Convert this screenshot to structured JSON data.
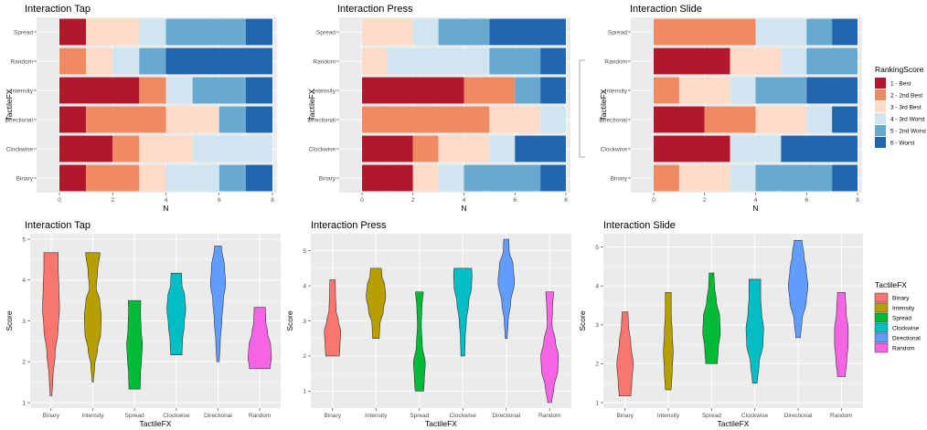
{
  "chart_data": [
    {
      "type": "bar",
      "orientation": "horizontal",
      "stacked": true,
      "title": "Interaction Tap",
      "xlabel": "N",
      "ylabel": "TactileFX",
      "xlim": [
        0,
        8
      ],
      "xticks": [
        "0",
        "2",
        "4",
        "6",
        "8"
      ],
      "categories": [
        "Binary",
        "Clockwise",
        "Directional",
        "Intensity",
        "Random",
        "Spread"
      ],
      "series": [
        {
          "name": "1 - Best",
          "values": [
            1,
            2,
            1,
            3,
            0,
            1
          ]
        },
        {
          "name": "2 - 2nd Best",
          "values": [
            2,
            1,
            3,
            1,
            1,
            0
          ]
        },
        {
          "name": "3 - 3rd Best",
          "values": [
            1,
            2,
            2,
            0,
            1,
            2
          ]
        },
        {
          "name": "4 - 3rd Worst",
          "values": [
            2,
            3,
            0,
            1,
            1,
            1
          ]
        },
        {
          "name": "5 - 2nd Worst",
          "values": [
            1,
            0,
            1,
            2,
            1,
            3
          ]
        },
        {
          "name": "6 - Worst",
          "values": [
            1,
            0,
            1,
            1,
            4,
            1
          ]
        }
      ]
    },
    {
      "type": "bar",
      "orientation": "horizontal",
      "stacked": true,
      "title": "Interaction Press",
      "xlabel": "N",
      "ylabel": "TactileFX",
      "xlim": [
        0,
        8
      ],
      "xticks": [
        "0",
        "2",
        "4",
        "6",
        "8"
      ],
      "categories": [
        "Binary",
        "Clockwise",
        "Directional",
        "Intensity",
        "Random",
        "Spread"
      ],
      "series": [
        {
          "name": "1 - Best",
          "values": [
            2,
            2,
            0,
            4,
            0,
            0
          ]
        },
        {
          "name": "2 - 2nd Best",
          "values": [
            0,
            1,
            5,
            2,
            0,
            0
          ]
        },
        {
          "name": "3 - 3rd Best",
          "values": [
            1,
            2,
            2,
            0,
            1,
            2
          ]
        },
        {
          "name": "4 - 3rd Worst",
          "values": [
            1,
            1,
            1,
            0,
            4,
            1
          ]
        },
        {
          "name": "5 - 2nd Worst",
          "values": [
            3,
            0,
            0,
            1,
            2,
            2
          ]
        },
        {
          "name": "6 - Worst",
          "values": [
            1,
            2,
            0,
            1,
            1,
            3
          ]
        }
      ]
    },
    {
      "type": "bar",
      "orientation": "horizontal",
      "stacked": true,
      "title": "Interaction Slide",
      "xlabel": "N",
      "ylabel": "TactileFX",
      "xlim": [
        0,
        8
      ],
      "xticks": [
        "0",
        "2",
        "4",
        "6",
        "8"
      ],
      "categories": [
        "Binary",
        "Clockwise",
        "Directional",
        "Intensity",
        "Random",
        "Spread"
      ],
      "series": [
        {
          "name": "1 - Best",
          "values": [
            0,
            3,
            2,
            0,
            3,
            0
          ]
        },
        {
          "name": "2 - 2nd Best",
          "values": [
            1,
            0,
            2,
            1,
            0,
            4
          ]
        },
        {
          "name": "3 - 3rd Best",
          "values": [
            2,
            0,
            2,
            2,
            2,
            0
          ]
        },
        {
          "name": "4 - 3rd Worst",
          "values": [
            1,
            2,
            1,
            1,
            1,
            2
          ]
        },
        {
          "name": "5 - 2nd Worst",
          "values": [
            3,
            0,
            0,
            2,
            2,
            1
          ]
        },
        {
          "name": "6 - Worst",
          "values": [
            1,
            3,
            1,
            2,
            0,
            1
          ]
        }
      ]
    },
    {
      "type": "violin",
      "title": "Interaction Tap",
      "xlabel": "TactileFX",
      "ylabel": "Score",
      "ylim": [
        1,
        5
      ],
      "yticks": [
        "1",
        "2",
        "3",
        "4",
        "5"
      ],
      "categories": [
        "Binary",
        "Intensity",
        "Spread",
        "Clockwise",
        "Directional",
        "Random"
      ],
      "series": [
        {
          "name": "Binary",
          "min": 1.17,
          "max": 4.67,
          "profile": [
            [
              1.17,
              0.05
            ],
            [
              1.6,
              0.1
            ],
            [
              2.2,
              0.22
            ],
            [
              2.8,
              0.38
            ],
            [
              3.3,
              0.45
            ],
            [
              3.8,
              0.42
            ],
            [
              4.3,
              0.38
            ],
            [
              4.67,
              0.38
            ]
          ]
        },
        {
          "name": "Intensity",
          "min": 1.5,
          "max": 4.67,
          "profile": [
            [
              1.5,
              0.03
            ],
            [
              1.9,
              0.1
            ],
            [
              2.3,
              0.25
            ],
            [
              2.7,
              0.42
            ],
            [
              3.1,
              0.45
            ],
            [
              3.5,
              0.37
            ],
            [
              3.8,
              0.18
            ],
            [
              4.2,
              0.25
            ],
            [
              4.67,
              0.38
            ]
          ]
        },
        {
          "name": "Spread",
          "min": 1.33,
          "max": 3.5,
          "profile": [
            [
              1.33,
              0.3
            ],
            [
              1.7,
              0.32
            ],
            [
              2.1,
              0.38
            ],
            [
              2.4,
              0.42
            ],
            [
              2.8,
              0.35
            ],
            [
              3.2,
              0.32
            ],
            [
              3.5,
              0.33
            ]
          ]
        },
        {
          "name": "Clockwise",
          "min": 2.17,
          "max": 4.17,
          "profile": [
            [
              2.17,
              0.3
            ],
            [
              2.5,
              0.33
            ],
            [
              2.9,
              0.42
            ],
            [
              3.3,
              0.5
            ],
            [
              3.6,
              0.45
            ],
            [
              3.9,
              0.3
            ],
            [
              4.17,
              0.28
            ]
          ]
        },
        {
          "name": "Directional",
          "min": 2.0,
          "max": 4.83,
          "profile": [
            [
              2.0,
              0.07
            ],
            [
              2.5,
              0.12
            ],
            [
              3.0,
              0.2
            ],
            [
              3.5,
              0.28
            ],
            [
              3.9,
              0.4
            ],
            [
              4.3,
              0.35
            ],
            [
              4.83,
              0.18
            ]
          ]
        },
        {
          "name": "Random",
          "min": 1.83,
          "max": 3.33,
          "profile": [
            [
              1.83,
              0.55
            ],
            [
              2.1,
              0.62
            ],
            [
              2.4,
              0.58
            ],
            [
              2.7,
              0.42
            ],
            [
              3.0,
              0.32
            ],
            [
              3.33,
              0.3
            ]
          ]
        }
      ]
    },
    {
      "type": "violin",
      "title": "Interaction Press",
      "xlabel": "TactileFX",
      "ylabel": "Score",
      "ylim": [
        0.67,
        5.33
      ],
      "yticks": [
        "1",
        "2",
        "3",
        "4",
        "5"
      ],
      "categories": [
        "Binary",
        "Intensity",
        "Spread",
        "Clockwise",
        "Directional",
        "Random"
      ],
      "series": [
        {
          "name": "Binary",
          "min": 2.0,
          "max": 4.17,
          "profile": [
            [
              2.0,
              0.35
            ],
            [
              2.3,
              0.38
            ],
            [
              2.7,
              0.42
            ],
            [
              3.0,
              0.3
            ],
            [
              3.3,
              0.18
            ],
            [
              3.8,
              0.15
            ],
            [
              4.17,
              0.14
            ]
          ]
        },
        {
          "name": "Intensity",
          "min": 2.5,
          "max": 4.5,
          "profile": [
            [
              2.5,
              0.17
            ],
            [
              2.9,
              0.2
            ],
            [
              3.3,
              0.38
            ],
            [
              3.7,
              0.5
            ],
            [
              4.0,
              0.45
            ],
            [
              4.3,
              0.3
            ],
            [
              4.5,
              0.28
            ]
          ]
        },
        {
          "name": "Spread",
          "min": 1.0,
          "max": 3.83,
          "profile": [
            [
              1.0,
              0.22
            ],
            [
              1.3,
              0.25
            ],
            [
              1.8,
              0.3
            ],
            [
              2.3,
              0.15
            ],
            [
              2.9,
              0.1
            ],
            [
              3.4,
              0.13
            ],
            [
              3.83,
              0.2
            ]
          ]
        },
        {
          "name": "Clockwise",
          "min": 2.0,
          "max": 4.5,
          "profile": [
            [
              2.0,
              0.1
            ],
            [
              2.5,
              0.12
            ],
            [
              3.0,
              0.18
            ],
            [
              3.5,
              0.3
            ],
            [
              4.0,
              0.45
            ],
            [
              4.3,
              0.47
            ],
            [
              4.5,
              0.45
            ]
          ]
        },
        {
          "name": "Directional",
          "min": 2.5,
          "max": 5.33,
          "profile": [
            [
              2.5,
              0.05
            ],
            [
              3.0,
              0.1
            ],
            [
              3.5,
              0.22
            ],
            [
              4.1,
              0.42
            ],
            [
              4.6,
              0.35
            ],
            [
              5.0,
              0.15
            ],
            [
              5.33,
              0.13
            ]
          ]
        },
        {
          "name": "Random",
          "min": 0.67,
          "max": 3.83,
          "profile": [
            [
              0.67,
              0.1
            ],
            [
              1.1,
              0.22
            ],
            [
              1.6,
              0.42
            ],
            [
              2.0,
              0.45
            ],
            [
              2.4,
              0.3
            ],
            [
              2.9,
              0.12
            ],
            [
              3.4,
              0.15
            ],
            [
              3.83,
              0.2
            ]
          ]
        }
      ]
    },
    {
      "type": "violin",
      "title": "Interaction Slide",
      "xlabel": "TactileFX",
      "ylabel": "Score",
      "ylim": [
        1,
        5.2
      ],
      "yticks": [
        "1",
        "2",
        "3",
        "4",
        "5"
      ],
      "categories": [
        "Binary",
        "Intensity",
        "Spread",
        "Clockwise",
        "Directional",
        "Random"
      ],
      "series": [
        {
          "name": "Binary",
          "min": 1.17,
          "max": 3.33,
          "profile": [
            [
              1.17,
              0.3
            ],
            [
              1.5,
              0.35
            ],
            [
              2.0,
              0.42
            ],
            [
              2.5,
              0.3
            ],
            [
              3.0,
              0.18
            ],
            [
              3.33,
              0.15
            ]
          ]
        },
        {
          "name": "Intensity",
          "min": 1.33,
          "max": 3.83,
          "profile": [
            [
              1.33,
              0.15
            ],
            [
              1.8,
              0.2
            ],
            [
              2.3,
              0.25
            ],
            [
              2.8,
              0.2
            ],
            [
              3.3,
              0.15
            ],
            [
              3.83,
              0.15
            ]
          ]
        },
        {
          "name": "Spread",
          "min": 2.0,
          "max": 4.33,
          "profile": [
            [
              2.0,
              0.3
            ],
            [
              2.4,
              0.35
            ],
            [
              2.8,
              0.45
            ],
            [
              3.2,
              0.42
            ],
            [
              3.6,
              0.25
            ],
            [
              4.0,
              0.15
            ],
            [
              4.33,
              0.12
            ]
          ]
        },
        {
          "name": "Clockwise",
          "min": 1.5,
          "max": 4.17,
          "profile": [
            [
              1.5,
              0.12
            ],
            [
              2.0,
              0.22
            ],
            [
              2.5,
              0.42
            ],
            [
              2.9,
              0.45
            ],
            [
              3.3,
              0.35
            ],
            [
              3.7,
              0.3
            ],
            [
              4.17,
              0.3
            ]
          ]
        },
        {
          "name": "Directional",
          "min": 2.67,
          "max": 5.17,
          "profile": [
            [
              2.67,
              0.12
            ],
            [
              3.1,
              0.2
            ],
            [
              3.6,
              0.42
            ],
            [
              4.0,
              0.5
            ],
            [
              4.4,
              0.42
            ],
            [
              4.8,
              0.3
            ],
            [
              5.17,
              0.2
            ]
          ]
        },
        {
          "name": "Random",
          "min": 1.67,
          "max": 3.83,
          "profile": [
            [
              1.67,
              0.2
            ],
            [
              2.1,
              0.28
            ],
            [
              2.5,
              0.35
            ],
            [
              2.9,
              0.35
            ],
            [
              3.3,
              0.25
            ],
            [
              3.83,
              0.2
            ]
          ]
        }
      ]
    }
  ],
  "legends": {
    "ranking": {
      "title": "RankingScore",
      "items": [
        {
          "label": "1 - Best",
          "color": "#b2182b"
        },
        {
          "label": "2 - 2nd Best",
          "color": "#ef8a62"
        },
        {
          "label": "3 - 3rd Best",
          "color": "#fddbc7"
        },
        {
          "label": "4 - 3rd Worst",
          "color": "#d1e5f0"
        },
        {
          "label": "5 - 2nd Worst",
          "color": "#67a9cf"
        },
        {
          "label": "6 - Worst",
          "color": "#2166ac"
        }
      ]
    },
    "tactile": {
      "title": "TactileFX",
      "items": [
        {
          "label": "Binary",
          "color": "#f8766d"
        },
        {
          "label": "Intensity",
          "color": "#b79f00"
        },
        {
          "label": "Spread",
          "color": "#00ba38"
        },
        {
          "label": "Clockwise",
          "color": "#00bfc4"
        },
        {
          "label": "Directional",
          "color": "#619cff"
        },
        {
          "label": "Random",
          "color": "#f564e3"
        }
      ]
    }
  },
  "style": {
    "panel_bg": "#ebebeb",
    "grid_major": "#ffffff",
    "tick_color": "#4d4d4d"
  }
}
